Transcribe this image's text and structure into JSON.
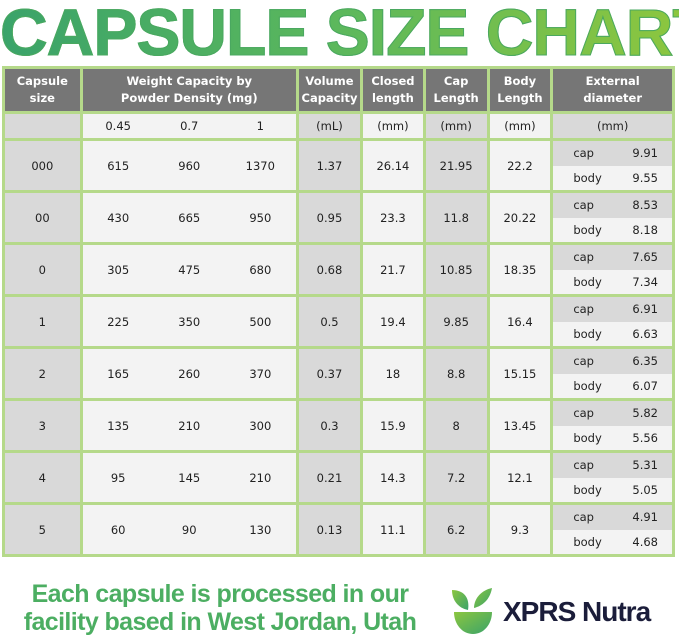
{
  "title": "CAPSULE SIZE CHART",
  "header": {
    "size": "Capsule size",
    "weight": "Weight Capacity by Powder Density (mg)",
    "volume": "Volume Capacity",
    "closed": "Closed length",
    "cap": "Cap Length",
    "body": "Body Length",
    "ext": "External diameter"
  },
  "units": {
    "size": "",
    "densities": [
      "0.45",
      "0.7",
      "1"
    ],
    "volume": "(mL)",
    "closed": "(mm)",
    "cap": "(mm)",
    "body": "(mm)",
    "ext": "(mm)"
  },
  "ext_labels": {
    "cap": "cap",
    "body": "body"
  },
  "rows": [
    {
      "size": "000",
      "w": [
        "615",
        "960",
        "1370"
      ],
      "vol": "1.37",
      "closed": "26.14",
      "cap": "21.95",
      "body": "22.2",
      "d_cap": "9.91",
      "d_body": "9.55"
    },
    {
      "size": "00",
      "w": [
        "430",
        "665",
        "950"
      ],
      "vol": "0.95",
      "closed": "23.3",
      "cap": "11.8",
      "body": "20.22",
      "d_cap": "8.53",
      "d_body": "8.18"
    },
    {
      "size": "0",
      "w": [
        "305",
        "475",
        "680"
      ],
      "vol": "0.68",
      "closed": "21.7",
      "cap": "10.85",
      "body": "18.35",
      "d_cap": "7.65",
      "d_body": "7.34"
    },
    {
      "size": "1",
      "w": [
        "225",
        "350",
        "500"
      ],
      "vol": "0.5",
      "closed": "19.4",
      "cap": "9.85",
      "body": "16.4",
      "d_cap": "6.91",
      "d_body": "6.63"
    },
    {
      "size": "2",
      "w": [
        "165",
        "260",
        "370"
      ],
      "vol": "0.37",
      "closed": "18",
      "cap": "8.8",
      "body": "15.15",
      "d_cap": "6.35",
      "d_body": "6.07"
    },
    {
      "size": "3",
      "w": [
        "135",
        "210",
        "300"
      ],
      "vol": "0.3",
      "closed": "15.9",
      "cap": "8",
      "body": "13.45",
      "d_cap": "5.82",
      "d_body": "5.56"
    },
    {
      "size": "4",
      "w": [
        "95",
        "145",
        "210"
      ],
      "vol": "0.21",
      "closed": "14.3",
      "cap": "7.2",
      "body": "12.1",
      "d_cap": "5.31",
      "d_body": "5.05"
    },
    {
      "size": "5",
      "w": [
        "60",
        "90",
        "130"
      ],
      "vol": "0.13",
      "closed": "11.1",
      "cap": "6.2",
      "body": "9.3",
      "d_cap": "4.91",
      "d_body": "4.68"
    }
  ],
  "footer": {
    "line1": "Each capsule is processed in our",
    "line2": "facility based in West Jordan, Utah"
  },
  "brand": "XPRS Nutra",
  "colors": {
    "border": "#b5d98a",
    "header": "#767676",
    "title_green": "#4cae62",
    "brand": "#1b1d3a"
  }
}
